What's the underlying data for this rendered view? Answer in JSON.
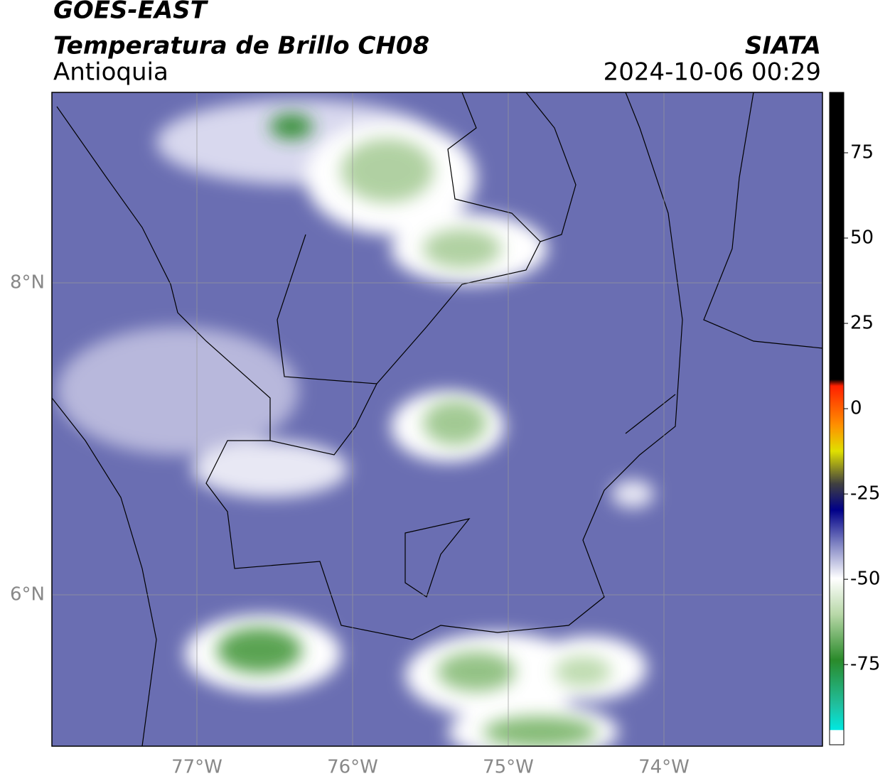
{
  "header": {
    "title": "GOES-EAST",
    "subtitle": "Temperatura de Brillo CH08",
    "region": "Antioquia",
    "source": "SIATA",
    "datetime": "2024-10-06 00:29"
  },
  "map": {
    "lat_labels": [
      "8°N",
      "6°N"
    ],
    "lon_labels": [
      "77°W",
      "76°W",
      "75°W",
      "74°W"
    ]
  },
  "colorbar": {
    "ticks": [
      75,
      50,
      25,
      0,
      -25,
      -50,
      -75
    ],
    "range": [
      -98.5,
      92.7
    ]
  }
}
